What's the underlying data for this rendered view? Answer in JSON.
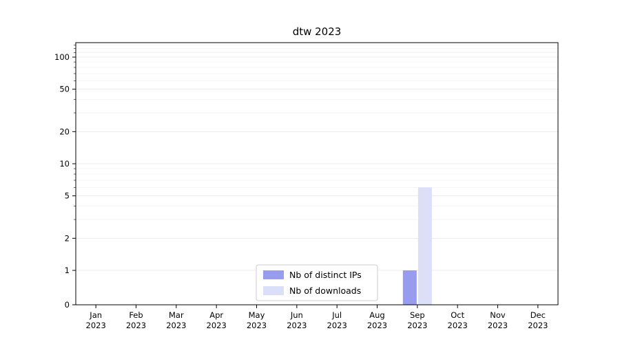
{
  "chart_data": {
    "type": "bar",
    "title": "dtw 2023",
    "categories": [
      "Jan",
      "Feb",
      "Mar",
      "Apr",
      "May",
      "Jun",
      "Jul",
      "Aug",
      "Sep",
      "Oct",
      "Nov",
      "Dec"
    ],
    "category_year": "2023",
    "series": [
      {
        "name": "Nb of distinct IPs",
        "color": "#989cee",
        "values": [
          0,
          0,
          0,
          0,
          0,
          0,
          0,
          0,
          1,
          0,
          0,
          0
        ]
      },
      {
        "name": "Nb of downloads",
        "color": "#dcdff8",
        "values": [
          0,
          0,
          0,
          0,
          0,
          0,
          0,
          0,
          6,
          0,
          0,
          0
        ]
      }
    ],
    "yscale": "symlog",
    "yticks": [
      0,
      1,
      2,
      5,
      10,
      20,
      50,
      100
    ],
    "ylim": [
      0,
      140
    ],
    "xlabel": "",
    "ylabel": "",
    "grid": true,
    "legend_position": "lower center",
    "colors": {
      "axis": "#000000",
      "grid_major": "#e6e6e6",
      "grid_minor": "#f2f2f2",
      "legend_border": "#cccccc",
      "background": "#ffffff"
    }
  }
}
